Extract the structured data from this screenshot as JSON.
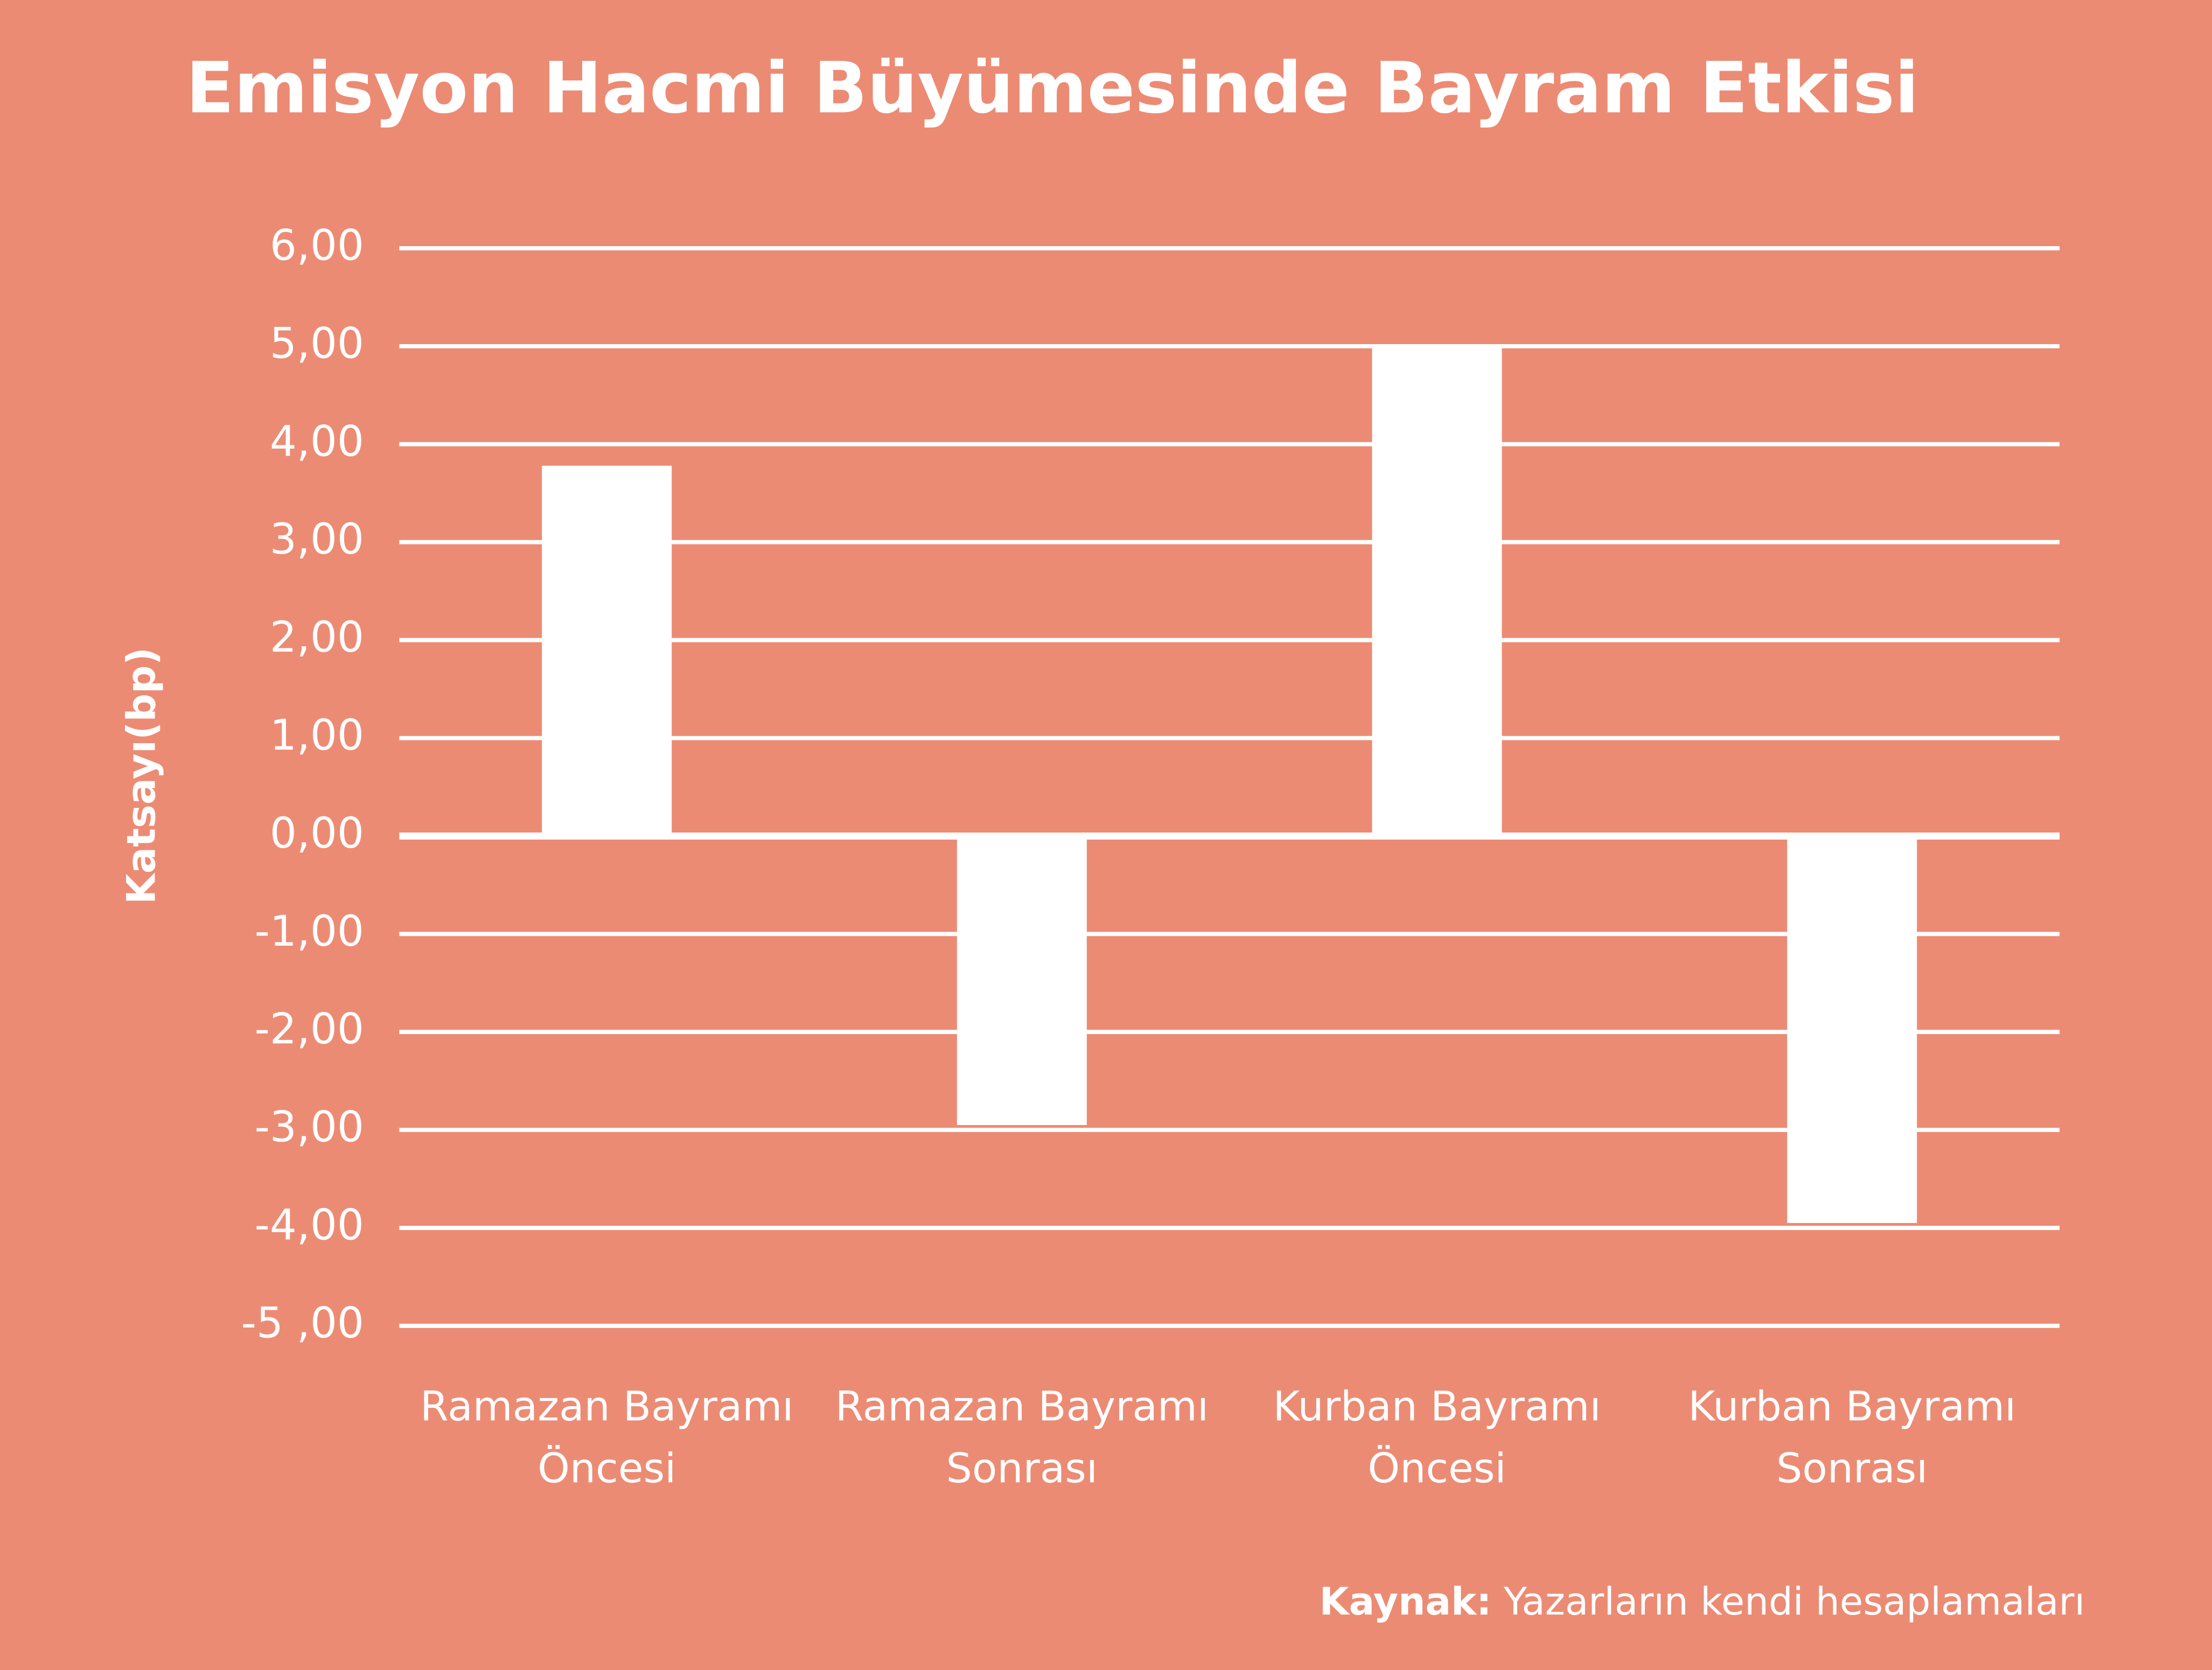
{
  "chart_data": {
    "type": "bar",
    "title": "Emisyon Hacmi Büyümesinde Bayram Etkisi",
    "y_axis_label": "Katsayı(bp)",
    "categories": [
      "Ramazan Bayramı Öncesi",
      "Ramazan Bayramı Sonrası",
      "Kurban Bayramı Öncesi",
      "Kurban Bayramı Sonrası"
    ],
    "values": [
      3.78,
      -2.95,
      5.02,
      -3.95
    ],
    "color": "#ffffff",
    "ylim": [
      -5,
      6
    ],
    "yticks": [
      {
        "value": 6,
        "label": "6,00"
      },
      {
        "value": 5,
        "label": "5,00"
      },
      {
        "value": 4,
        "label": "4,00"
      },
      {
        "value": 3,
        "label": "3,00"
      },
      {
        "value": 2,
        "label": "2,00"
      },
      {
        "value": 1,
        "label": "1,00"
      },
      {
        "value": 0,
        "label": "0,00"
      },
      {
        "value": -1,
        "label": "-1,00"
      },
      {
        "value": -2,
        "label": "-2,00"
      },
      {
        "value": -3,
        "label": "-3,00"
      },
      {
        "value": -4,
        "label": "-4,00"
      },
      {
        "value": -5,
        "label": "-5 ,00"
      }
    ],
    "grid": true,
    "source_label": "Kaynak:",
    "source_text": "Yazarların kendi hesaplamaları"
  }
}
